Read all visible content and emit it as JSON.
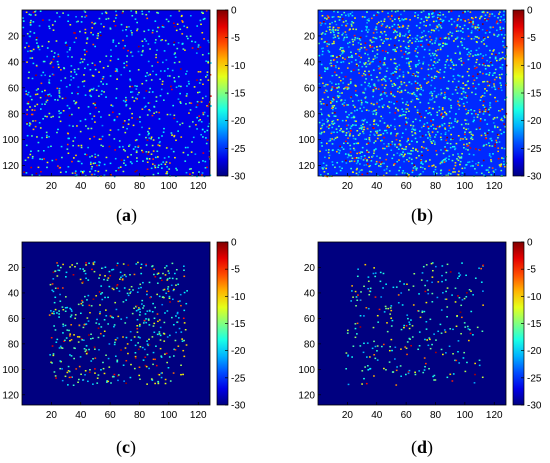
{
  "chart_data": [
    {
      "type": "heatmap",
      "panel": "a",
      "grid_size": [
        128,
        128
      ],
      "x_ticks": [
        20,
        40,
        60,
        80,
        100,
        120
      ],
      "y_ticks": [
        20,
        40,
        60,
        80,
        100,
        120
      ],
      "xlim": [
        0,
        128
      ],
      "ylim": [
        0,
        128
      ],
      "y_axis_reversed": true,
      "colorbar": {
        "ticks": [
          0,
          -5,
          -10,
          -15,
          -20,
          -25,
          -30
        ],
        "range": [
          -30,
          0
        ],
        "colormap": "jet"
      },
      "background_level": -27,
      "support_region": [
        0,
        128,
        0,
        128
      ],
      "point_density": 0.055,
      "seed": 11,
      "noise": "dense speckle over entire image"
    },
    {
      "type": "heatmap",
      "panel": "b",
      "grid_size": [
        128,
        128
      ],
      "x_ticks": [
        20,
        40,
        60,
        80,
        100,
        120
      ],
      "y_ticks": [
        20,
        40,
        60,
        80,
        100,
        120
      ],
      "xlim": [
        0,
        128
      ],
      "ylim": [
        0,
        128
      ],
      "y_axis_reversed": true,
      "colorbar": {
        "ticks": [
          0,
          -5,
          -10,
          -15,
          -20,
          -25,
          -30
        ],
        "range": [
          -30,
          0
        ],
        "colormap": "jet"
      },
      "background_level": -25,
      "support_region": [
        0,
        128,
        0,
        128
      ],
      "point_density": 0.12,
      "seed": 23,
      "noise": "heavier speckle over entire image"
    },
    {
      "type": "heatmap",
      "panel": "c",
      "grid_size": [
        128,
        128
      ],
      "x_ticks": [
        20,
        40,
        60,
        80,
        100,
        120
      ],
      "y_ticks": [
        20,
        40,
        60,
        80,
        100,
        120
      ],
      "xlim": [
        0,
        128
      ],
      "ylim": [
        0,
        128
      ],
      "y_axis_reversed": true,
      "colorbar": {
        "ticks": [
          0,
          -5,
          -10,
          -15,
          -20,
          -25,
          -30
        ],
        "range": [
          -30,
          0
        ],
        "colormap": "jet"
      },
      "background_level": -30,
      "support_region": [
        18,
        112,
        15,
        112
      ],
      "point_density": 0.032,
      "seed": 37,
      "noise": "sparse scatterers inside central region"
    },
    {
      "type": "heatmap",
      "panel": "d",
      "grid_size": [
        128,
        128
      ],
      "x_ticks": [
        20,
        40,
        60,
        80,
        100,
        120
      ],
      "y_ticks": [
        20,
        40,
        60,
        80,
        100,
        120
      ],
      "xlim": [
        0,
        128
      ],
      "ylim": [
        0,
        128
      ],
      "y_axis_reversed": true,
      "colorbar": {
        "ticks": [
          0,
          -5,
          -10,
          -15,
          -20,
          -25,
          -30
        ],
        "range": [
          -30,
          0
        ],
        "colormap": "jet"
      },
      "background_level": -30,
      "support_region": [
        18,
        112,
        15,
        112
      ],
      "point_density": 0.018,
      "seed": 53,
      "noise": "very sparse scatterers inside central region"
    }
  ],
  "labels": {
    "a": "a",
    "b": "b",
    "c": "c",
    "d": "d"
  }
}
